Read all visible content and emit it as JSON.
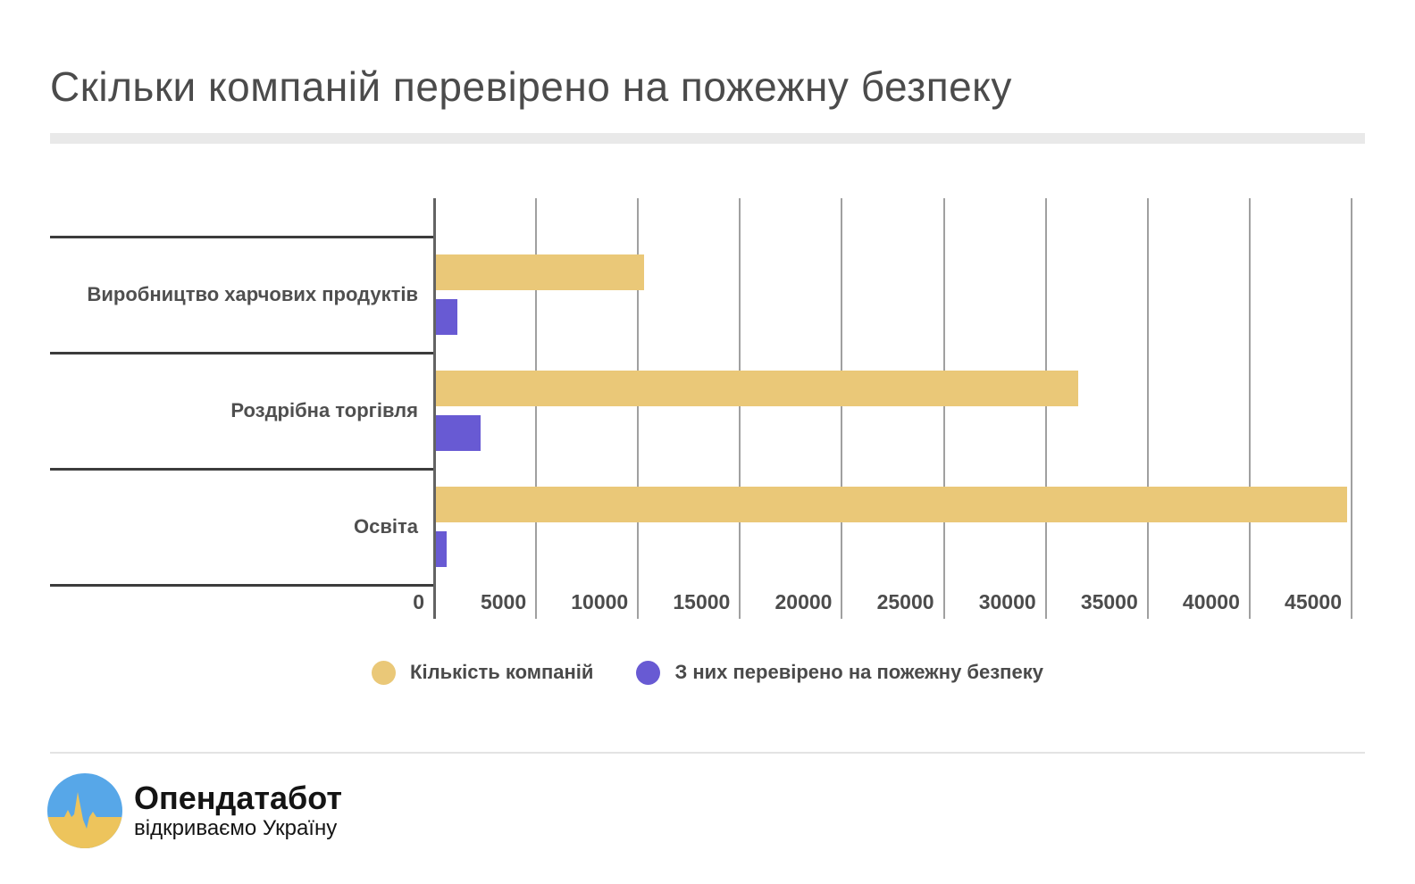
{
  "title": "Скільки компаній перевірено на пожежну безпеку",
  "chart_data": {
    "type": "bar",
    "orientation": "horizontal",
    "title": "Скільки компаній перевірено на пожежну безпеку",
    "categories": [
      "Виробництво харчових продуктів",
      "Роздрібна торгівля",
      "Освіта"
    ],
    "series": [
      {
        "name": "Кількість компаній",
        "color": "#eac878",
        "values": [
          10200,
          31500,
          44700
        ]
      },
      {
        "name": "З них перевірено на пожежну безпеку",
        "color": "#685ad3",
        "values": [
          1050,
          2200,
          530
        ]
      }
    ],
    "xlim": [
      0,
      45000
    ],
    "xticks": [
      0,
      5000,
      10000,
      15000,
      20000,
      25000,
      30000,
      35000,
      40000,
      45000
    ],
    "xlabel": "",
    "ylabel": "",
    "grid": true,
    "legend_position": "bottom"
  },
  "footer": {
    "brand": "Опендатабот",
    "tagline": "відкриваємо Україну"
  },
  "colors": {
    "bar_primary": "#eac878",
    "bar_secondary": "#685ad3",
    "gridline": "#a0a0a0",
    "axis": "#636363",
    "row_line": "#3c3c3c",
    "text": "#4b4b4b",
    "divider": "#e9e9e9",
    "logo_blue": "#57a7e8",
    "logo_yellow": "#edc45c"
  }
}
